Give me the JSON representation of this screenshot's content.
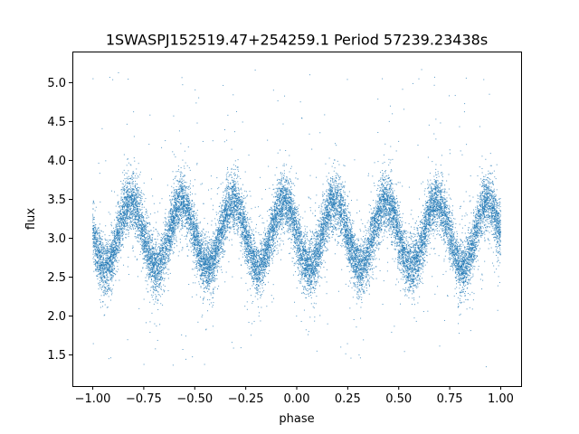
{
  "chart_data": {
    "type": "scatter",
    "title": "1SWASPJ152519.47+254259.1 Period 57239.23438s",
    "xlabel": "phase",
    "ylabel": "flux",
    "xlim": [
      -1.1,
      1.1
    ],
    "ylim": [
      1.1,
      5.4
    ],
    "x_ticks": [
      -1.0,
      -0.75,
      -0.5,
      -0.25,
      0.0,
      0.25,
      0.5,
      0.75,
      1.0
    ],
    "x_tick_labels": [
      "−1.00",
      "−0.75",
      "−0.50",
      "−0.25",
      "0.00",
      "0.25",
      "0.50",
      "0.75",
      "1.00"
    ],
    "y_ticks": [
      1.5,
      2.0,
      2.5,
      3.0,
      3.5,
      4.0,
      4.5,
      5.0
    ],
    "y_tick_labels": [
      "1.5",
      "2.0",
      "2.5",
      "3.0",
      "3.5",
      "4.0",
      "4.5",
      "5.0"
    ],
    "grid": false,
    "legend": false,
    "point_color": "#1f77b4",
    "series": [
      {
        "model": "folded light curve, dense cloud of points",
        "x_range": [
          -1.0,
          1.0
        ],
        "mean_flux": 3.05,
        "amplitude": 0.42,
        "cycles_per_unit_phase": 4,
        "peak_phases": [
          -0.8125,
          -0.5625,
          -0.3125,
          -0.0625,
          0.1875,
          0.4375,
          0.6875,
          0.9375
        ],
        "trough_phases": [
          -0.9375,
          -0.6875,
          -0.4375,
          -0.1875,
          0.0625,
          0.3125,
          0.5625,
          0.8125
        ],
        "scatter_sigma": 0.17,
        "outlier_range": [
          1.3,
          5.2
        ],
        "approx_point_count": 20000
      }
    ]
  }
}
